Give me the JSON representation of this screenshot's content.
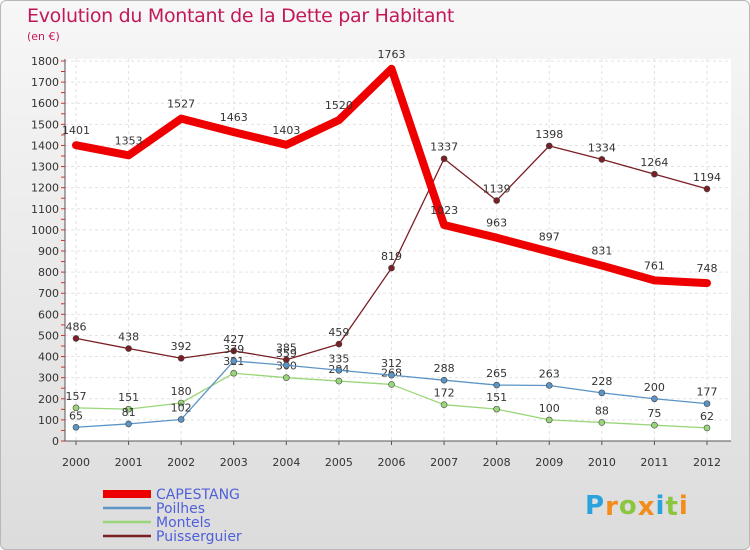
{
  "chart_data": {
    "type": "line",
    "title": "Evolution du Montant de la Dette par Habitant",
    "subtitle": "(en €)",
    "xlabel": "",
    "ylabel": "",
    "ylim": [
      0,
      1800
    ],
    "yticks": [
      0,
      100,
      200,
      300,
      400,
      500,
      600,
      700,
      800,
      900,
      1000,
      1100,
      1200,
      1300,
      1400,
      1500,
      1600,
      1700,
      1800
    ],
    "categories": [
      "2000",
      "2001",
      "2002",
      "2003",
      "2004",
      "2005",
      "2006",
      "2007",
      "2008",
      "2009",
      "2010",
      "2011",
      "2012"
    ],
    "series": [
      {
        "name": "Puisserguier",
        "color": "#7a1f24",
        "values": [
          486,
          438,
          392,
          427,
          385,
          459,
          819,
          1337,
          1139,
          1398,
          1334,
          1264,
          1194
        ]
      },
      {
        "name": "Montels",
        "color": "#99d67a",
        "values": [
          157,
          151,
          180,
          321,
          300,
          284,
          268,
          172,
          151,
          100,
          88,
          75,
          62
        ]
      },
      {
        "name": "Poilhes",
        "color": "#5b94c5",
        "values": [
          65,
          81,
          102,
          379,
          359,
          335,
          312,
          288,
          265,
          263,
          228,
          200,
          177
        ]
      },
      {
        "name": "CAPESTANG",
        "color": "#ee0000",
        "values": [
          1401,
          1353,
          1527,
          1463,
          1403,
          1520,
          1763,
          1023,
          963,
          897,
          831,
          761,
          748
        ]
      }
    ],
    "legend": [
      "CAPESTANG",
      "Poilhes",
      "Montels",
      "Puisserguier"
    ],
    "legend_position": "bottom-left"
  },
  "logo": {
    "letters": [
      "P",
      "r",
      "o",
      "x",
      "i",
      "t",
      "i"
    ],
    "colors": [
      "#2aa3dc",
      "#f28c1a",
      "#8cc63f",
      "#f28c1a",
      "#2aa3dc",
      "#8cc63f",
      "#f28c1a"
    ]
  }
}
